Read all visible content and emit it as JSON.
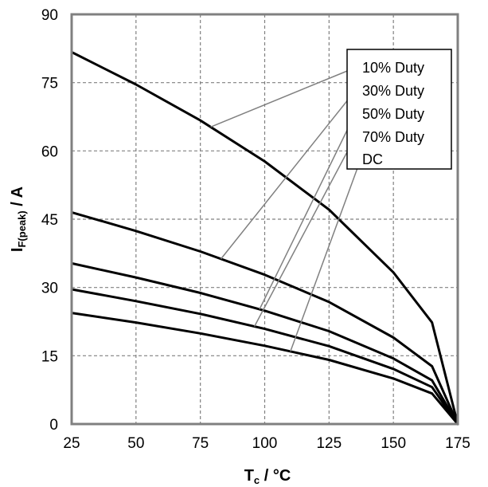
{
  "chart_data": {
    "type": "line",
    "xlabel_main": "T",
    "xlabel_sub": "c",
    "xlabel_rest": " / °C",
    "ylabel_main": "I",
    "ylabel_sub": "F(peak)",
    "ylabel_rest": " / A",
    "xlim": [
      25,
      175
    ],
    "ylim": [
      0,
      90
    ],
    "xticks": [
      25,
      50,
      75,
      100,
      125,
      150,
      175
    ],
    "yticks": [
      0,
      15,
      30,
      45,
      60,
      75,
      90
    ],
    "grid": true,
    "legend_position": "top-right",
    "series": [
      {
        "name": "10% Duty",
        "x": [
          25,
          50,
          75,
          100,
          125,
          150,
          165,
          175
        ],
        "y": [
          81.7,
          74.6,
          66.7,
          57.7,
          47.1,
          33.3,
          22.3,
          0
        ]
      },
      {
        "name": "30% Duty",
        "x": [
          25,
          50,
          75,
          100,
          125,
          150,
          165,
          175
        ],
        "y": [
          46.5,
          42.4,
          37.9,
          32.8,
          26.8,
          19.0,
          12.7,
          0
        ]
      },
      {
        "name": "50% Duty",
        "x": [
          25,
          50,
          75,
          100,
          125,
          150,
          165,
          175
        ],
        "y": [
          35.3,
          32.2,
          28.8,
          24.9,
          20.4,
          14.4,
          9.6,
          0
        ]
      },
      {
        "name": "70% Duty",
        "x": [
          25,
          50,
          75,
          100,
          125,
          150,
          165,
          175
        ],
        "y": [
          29.6,
          27.0,
          24.2,
          20.9,
          17.1,
          12.1,
          8.1,
          0
        ]
      },
      {
        "name": "DC",
        "x": [
          25,
          50,
          75,
          100,
          125,
          150,
          165,
          175
        ],
        "y": [
          24.4,
          22.3,
          19.9,
          17.2,
          14.1,
          10.0,
          6.7,
          0
        ]
      }
    ],
    "colors": {
      "curve": "#000000",
      "grid": "#808080",
      "frame": "#808080",
      "leader": "#808080"
    }
  }
}
